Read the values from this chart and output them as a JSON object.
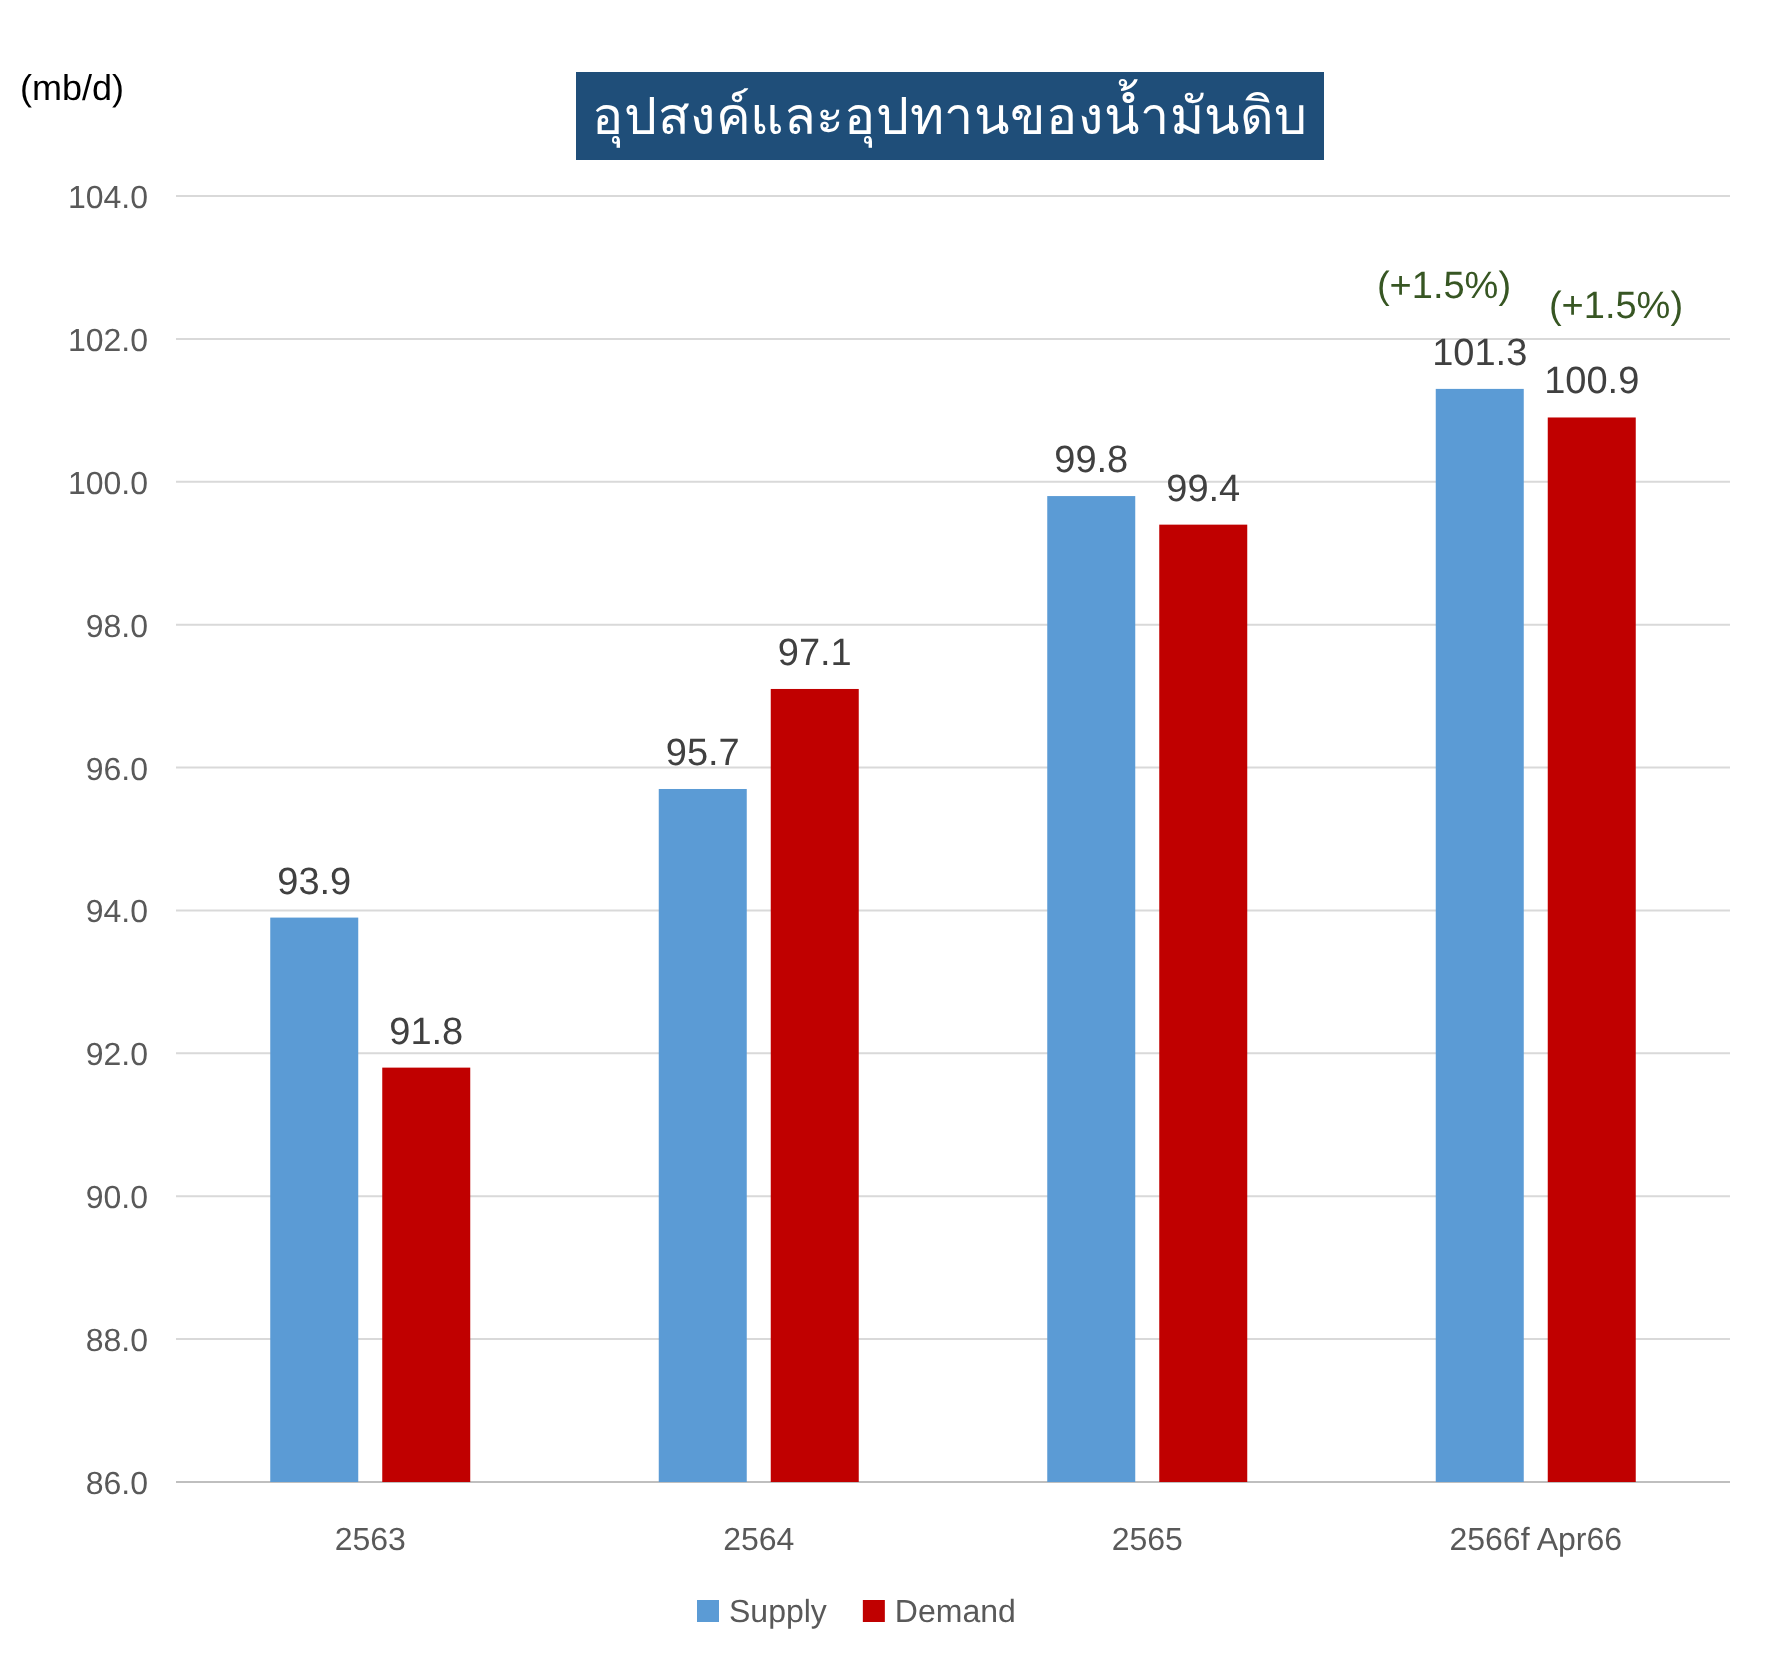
{
  "chart_data": {
    "type": "bar",
    "title": "อุปสงค์และอุปทานของน้ำมันดิบ",
    "ylabel": "(mb/d)",
    "categories": [
      "2563",
      "2564",
      "2565",
      "2566f Apr66"
    ],
    "series": [
      {
        "name": "Supply",
        "color": "#5b9bd5",
        "values": [
          93.9,
          95.7,
          99.8,
          101.3
        ]
      },
      {
        "name": "Demand",
        "color": "#c00000",
        "values": [
          91.8,
          97.1,
          99.4,
          100.9
        ]
      }
    ],
    "ylim": [
      86,
      104
    ],
    "yticks": [
      {
        "value": 86,
        "label": "86.0"
      },
      {
        "value": 88,
        "label": "88.0"
      },
      {
        "value": 90,
        "label": "90.0"
      },
      {
        "value": 92,
        "label": "92.0"
      },
      {
        "value": 94,
        "label": "94.0"
      },
      {
        "value": 96,
        "label": "96.0"
      },
      {
        "value": 98,
        "label": "98.0"
      },
      {
        "value": 100,
        "label": "100.0"
      },
      {
        "value": 102,
        "label": "102.0"
      },
      {
        "value": 104,
        "label": "104.0"
      }
    ],
    "grid": "y",
    "legend": "bottom",
    "data_labels": true,
    "annotations": [
      "(+1.5%)",
      "(+1.5%)"
    ]
  }
}
